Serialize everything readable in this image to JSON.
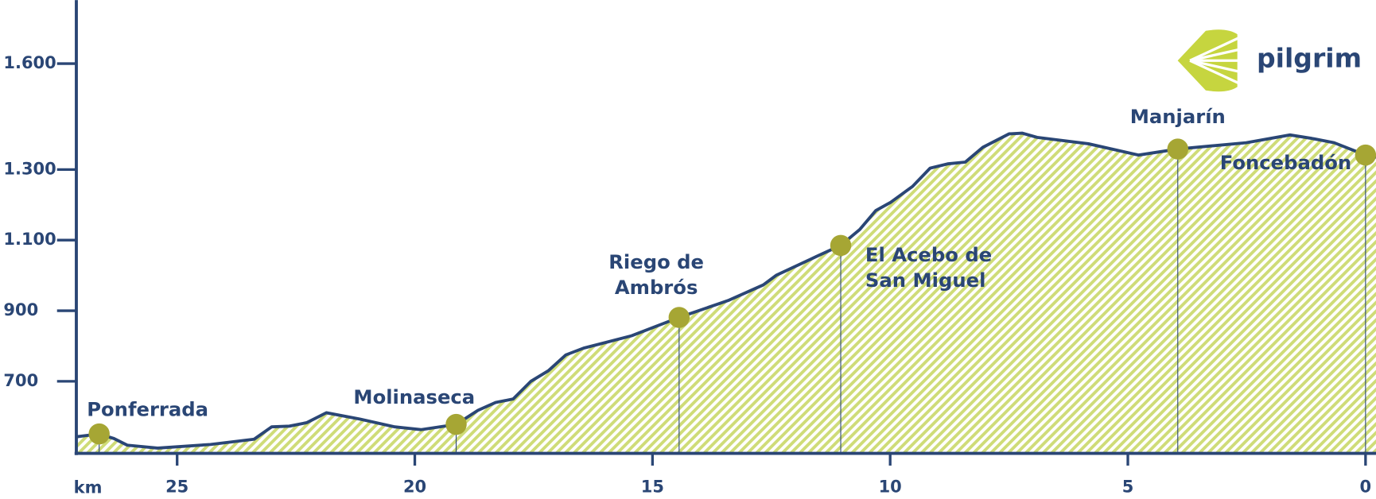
{
  "chart_data": {
    "type": "area",
    "x_label": "km",
    "logo": "pilgrim",
    "line_color": "#2a4675",
    "fill_color": "#cfdc78",
    "marker_color": "#a6a634",
    "xlim": [
      27.12,
      -0.22
    ],
    "ylim": [
      496,
      1780
    ],
    "xticks": [
      25,
      20,
      15,
      10,
      5,
      0
    ],
    "yticks": [
      700,
      900,
      {
        "value": 1100,
        "label": "1.100"
      },
      {
        "value": 1300,
        "label": "1.300"
      },
      {
        "value": 1600,
        "label": "1.600"
      }
    ],
    "profile": {
      "km": [
        27.12,
        26.64,
        26.33,
        26.05,
        25.41,
        24.3,
        23.38,
        23.01,
        22.64,
        22.27,
        21.86,
        21.16,
        20.42,
        19.87,
        19.13,
        18.67,
        18.3,
        17.93,
        17.56,
        17.19,
        16.82,
        16.45,
        15.44,
        14.44,
        13.41,
        12.67,
        12.39,
        11.56,
        11.04,
        10.64,
        10.3,
        9.99,
        9.53,
        9.16,
        8.79,
        8.42,
        8.05,
        7.5,
        7.22,
        6.91,
        5.83,
        4.78,
        3.95,
        2.51,
        1.59,
        1.13,
        0.66,
        0,
        -0.22
      ],
      "elevation": [
        543,
        551,
        538,
        519,
        511,
        521,
        536,
        571,
        573,
        583,
        611,
        593,
        571,
        563,
        578,
        618,
        640,
        650,
        700,
        730,
        775,
        794,
        829,
        881,
        929,
        973,
        1001,
        1053,
        1085,
        1130,
        1184,
        1207,
        1252,
        1304,
        1316,
        1321,
        1363,
        1401,
        1403,
        1391,
        1373,
        1341,
        1358,
        1376,
        1398,
        1388,
        1376,
        1341,
        1334
      ]
    },
    "towns": [
      {
        "name": [
          "Ponferrada"
        ],
        "km": 26.64,
        "elevation": 551
      },
      {
        "name": [
          "Molinaseca"
        ],
        "km": 19.13,
        "elevation": 578
      },
      {
        "name": [
          "Riego de",
          "Ambrós"
        ],
        "km": 14.44,
        "elevation": 881
      },
      {
        "name": [
          "El Acebo de",
          "San Miguel"
        ],
        "km": 11.04,
        "elevation": 1085
      },
      {
        "name": [
          "Manjarín"
        ],
        "km": 3.95,
        "elevation": 1358
      },
      {
        "name": [
          "Foncebadón"
        ],
        "km": 0,
        "elevation": 1341
      }
    ]
  }
}
